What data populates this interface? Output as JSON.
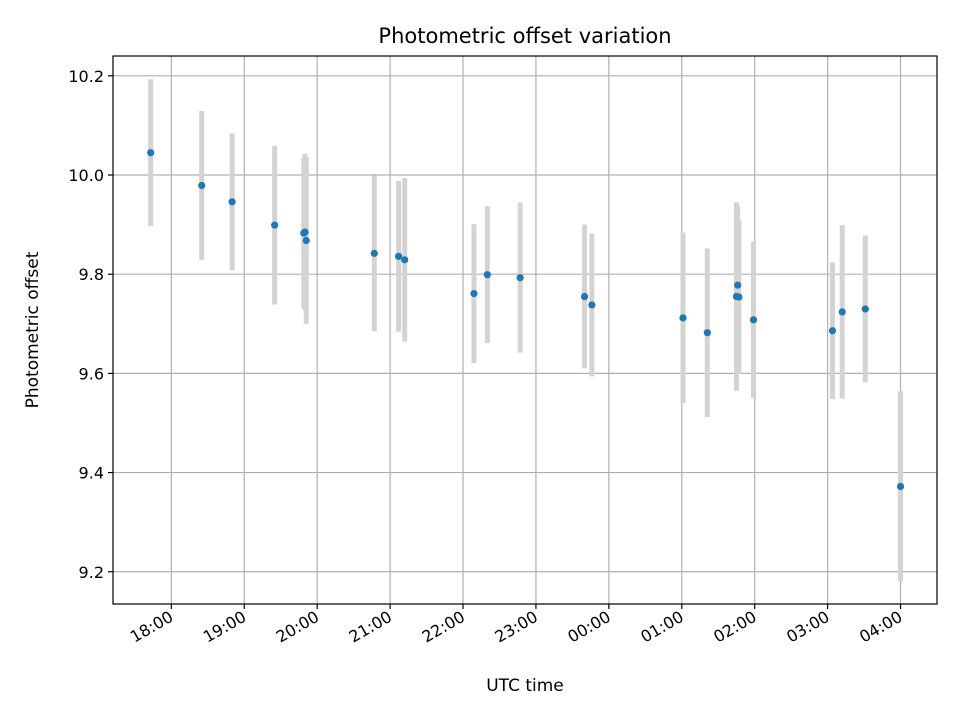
{
  "chart_data": {
    "type": "scatter",
    "title": "Photometric offset variation",
    "xlabel": "UTC time",
    "ylabel": "Photometric offset",
    "x_ticks": [
      "18:00",
      "19:00",
      "20:00",
      "21:00",
      "22:00",
      "23:00",
      "00:00",
      "01:00",
      "02:00",
      "03:00",
      "04:00"
    ],
    "y_ticks": [
      "9.2",
      "9.4",
      "9.6",
      "9.8",
      "10.0",
      "10.2"
    ],
    "xlim": [
      "17:12",
      "04:30"
    ],
    "ylim": [
      9.135,
      10.24
    ],
    "grid": true,
    "point_color": "#1f77b4",
    "errorbar_color": "#d3d3d3",
    "series": [
      {
        "points": [
          {
            "x": "17:43",
            "y": 10.045,
            "err": 0.148
          },
          {
            "x": "18:25",
            "y": 9.979,
            "err": 0.15
          },
          {
            "x": "18:50",
            "y": 9.946,
            "err": 0.138
          },
          {
            "x": "19:25",
            "y": 9.899,
            "err": 0.16
          },
          {
            "x": "19:49",
            "y": 9.883,
            "err": 0.152
          },
          {
            "x": "19:50",
            "y": 9.885,
            "err": 0.158
          },
          {
            "x": "19:51",
            "y": 9.868,
            "err": 0.168
          },
          {
            "x": "20:47",
            "y": 9.842,
            "err": 0.157
          },
          {
            "x": "21:07",
            "y": 9.836,
            "err": 0.152
          },
          {
            "x": "21:12",
            "y": 9.829,
            "err": 0.165
          },
          {
            "x": "22:09",
            "y": 9.761,
            "err": 0.14
          },
          {
            "x": "22:20",
            "y": 9.799,
            "err": 0.138
          },
          {
            "x": "22:47",
            "y": 9.793,
            "err": 0.151
          },
          {
            "x": "23:40",
            "y": 9.755,
            "err": 0.145
          },
          {
            "x": "23:46",
            "y": 9.738,
            "err": 0.144
          },
          {
            "x": "01:01",
            "y": 9.712,
            "err": 0.172
          },
          {
            "x": "01:21",
            "y": 9.682,
            "err": 0.17
          },
          {
            "x": "01:45",
            "y": 9.755,
            "err": 0.19
          },
          {
            "x": "01:46",
            "y": 9.778,
            "err": 0.16
          },
          {
            "x": "01:47",
            "y": 9.754,
            "err": 0.155
          },
          {
            "x": "01:59",
            "y": 9.708,
            "err": 0.158
          },
          {
            "x": "03:04",
            "y": 9.686,
            "err": 0.138
          },
          {
            "x": "03:12",
            "y": 9.724,
            "err": 0.175
          },
          {
            "x": "03:31",
            "y": 9.73,
            "err": 0.148
          },
          {
            "x": "04:00",
            "y": 9.372,
            "err": 0.192
          }
        ]
      }
    ]
  }
}
